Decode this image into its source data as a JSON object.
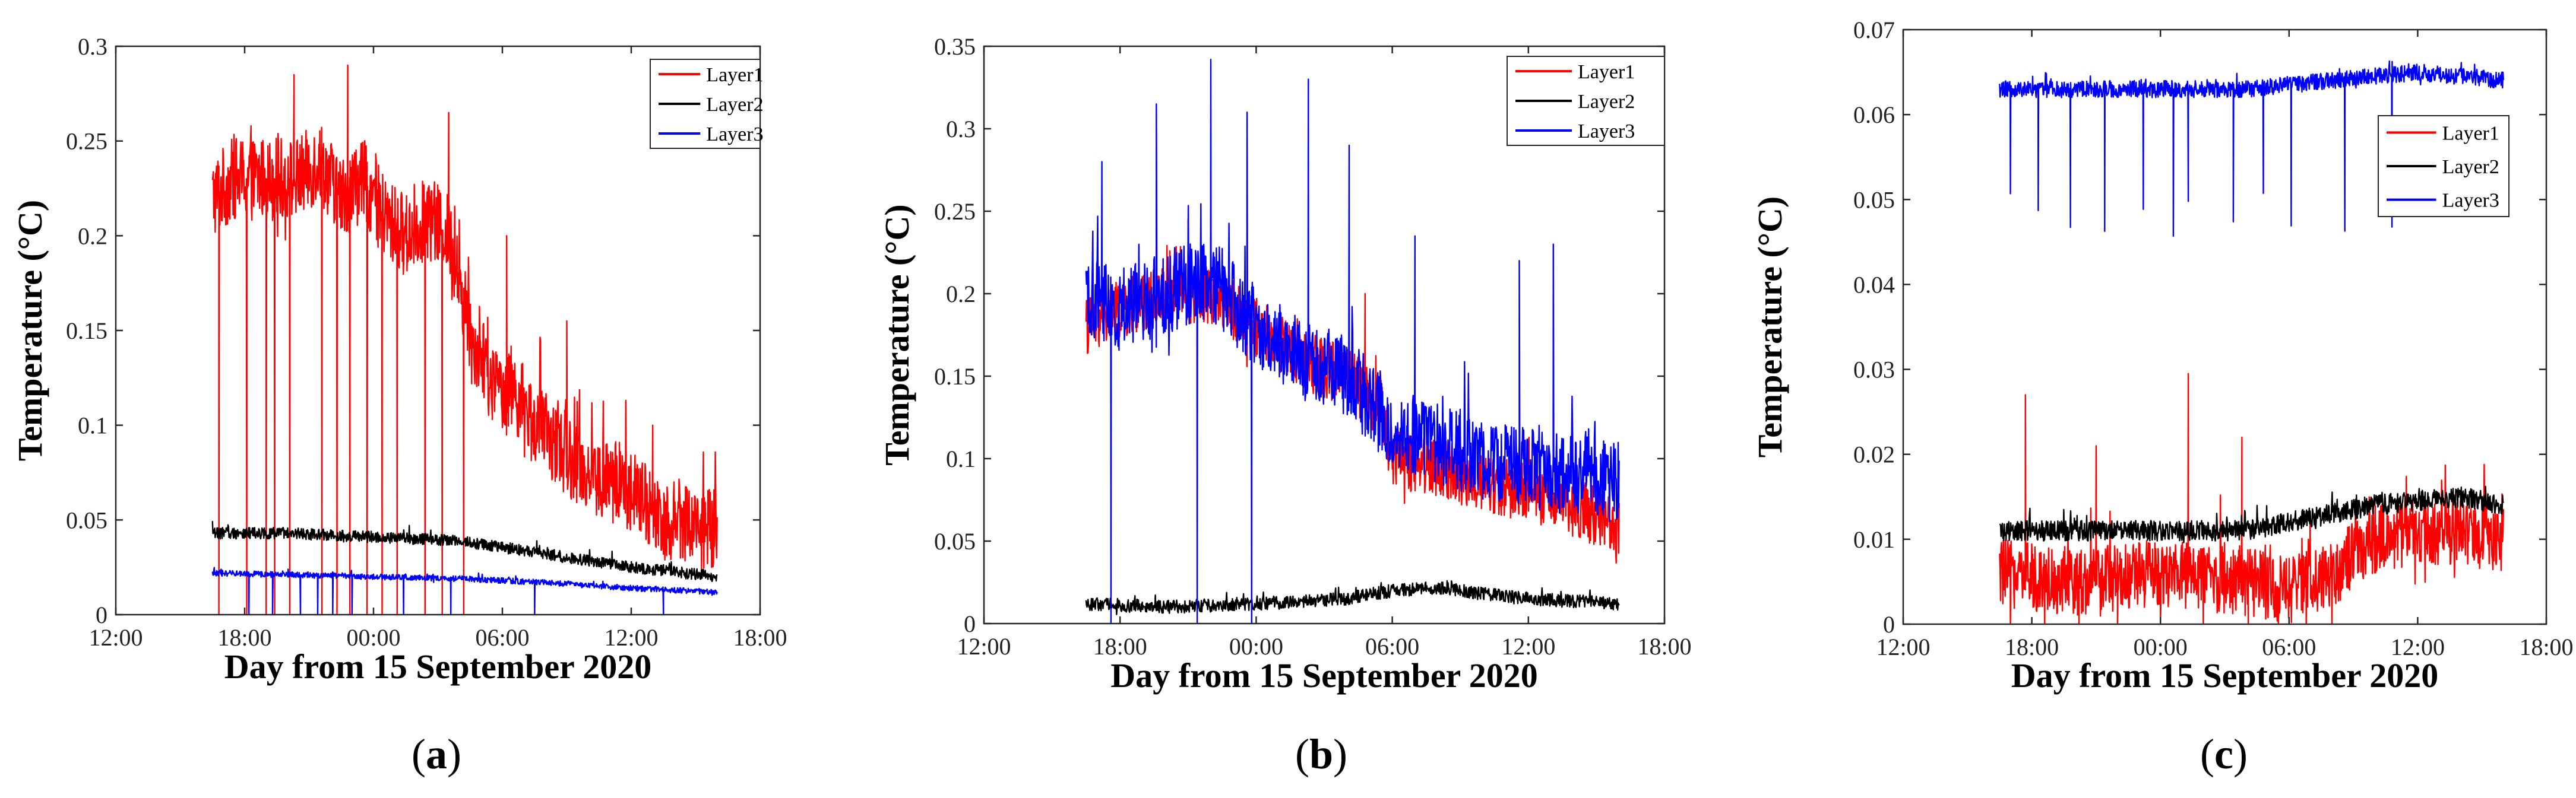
{
  "figure": {
    "xlabel": "Day from 15 September 2020",
    "ylabel": "Temperature (°C)"
  },
  "colors": {
    "Layer1": "#ff0000",
    "Layer2": "#000000",
    "Layer3": "#0000ff"
  },
  "chart_data": [
    {
      "panel": "a",
      "type": "line",
      "caption_open": "(",
      "caption_letter": "a",
      "caption_close": ")",
      "xlabel": "Day from 15 September 2020",
      "ylabel": "Temperature (°C)",
      "xlim": [
        12,
        42
      ],
      "xticks": [
        12,
        18,
        24,
        30,
        36,
        42
      ],
      "xtick_labels": [
        "12:00",
        "18:00",
        "00:00",
        "06:00",
        "12:00",
        "18:00"
      ],
      "ylim": [
        0,
        0.3
      ],
      "yticks": [
        0,
        0.05,
        0.1,
        0.15,
        0.2,
        0.25,
        0.3
      ],
      "ytick_labels": [
        "0",
        "0.05",
        "0.1",
        "0.15",
        "0.2",
        "0.25",
        "0.3"
      ],
      "legend": [
        "Layer1",
        "Layer2",
        "Layer3"
      ],
      "legend_position": "top-right",
      "series": [
        {
          "name": "Layer1",
          "x": [
            16.5,
            17.5,
            18.5,
            19.5,
            20.5,
            21.5,
            22.5,
            23.5,
            24.5,
            25.5,
            26.5,
            27.5,
            28.5,
            29.5,
            30.5,
            31.5,
            32.5,
            33.5,
            34.5,
            35.5,
            36.5,
            37.5,
            38.5,
            39.5,
            40.0
          ],
          "values": [
            0.22,
            0.23,
            0.23,
            0.23,
            0.23,
            0.24,
            0.22,
            0.23,
            0.21,
            0.2,
            0.21,
            0.2,
            0.15,
            0.12,
            0.12,
            0.1,
            0.09,
            0.08,
            0.07,
            0.07,
            0.06,
            0.05,
            0.05,
            0.045,
            0.045
          ],
          "noise": 0.022,
          "spikes": [
            {
              "x": 20.3,
              "y": 0.285
            },
            {
              "x": 22.8,
              "y": 0.29
            },
            {
              "x": 27.5,
              "y": 0.265
            },
            {
              "x": 30.2,
              "y": 0.2
            },
            {
              "x": 33.0,
              "y": 0.155
            },
            {
              "x": 37.0,
              "y": 0.1
            }
          ],
          "dips": [
            16.8,
            18.1,
            19.0,
            19.4,
            20.1,
            21.6,
            22.3,
            22.9,
            23.7,
            24.4,
            25.1,
            26.4,
            27.2,
            28.2
          ]
        },
        {
          "name": "Layer2",
          "x": [
            16.5,
            20,
            24,
            28,
            32,
            36,
            40
          ],
          "values": [
            0.043,
            0.043,
            0.041,
            0.039,
            0.032,
            0.025,
            0.02
          ],
          "noise": 0.003
        },
        {
          "name": "Layer3",
          "x": [
            16.5,
            20,
            24,
            28,
            32,
            36,
            40
          ],
          "values": [
            0.022,
            0.021,
            0.02,
            0.019,
            0.017,
            0.014,
            0.012
          ],
          "noise": 0.0015,
          "dips": [
            18.2,
            19.3,
            20.6,
            21.4,
            22.1,
            23.0,
            25.4,
            27.6,
            31.5,
            37.5
          ]
        }
      ]
    },
    {
      "panel": "b",
      "type": "line",
      "caption_open": "(",
      "caption_letter": "b",
      "caption_close": ")",
      "xlabel": "Day from 15 September 2020",
      "ylabel": "Temperature (°C)",
      "xlim": [
        12,
        42
      ],
      "xticks": [
        12,
        18,
        24,
        30,
        36,
        42
      ],
      "xtick_labels": [
        "12:00",
        "18:00",
        "00:00",
        "06:00",
        "12:00",
        "18:00"
      ],
      "ylim": [
        0,
        0.35
      ],
      "yticks": [
        0,
        0.05,
        0.1,
        0.15,
        0.2,
        0.25,
        0.3,
        0.35
      ],
      "ytick_labels": [
        "0",
        "0.05",
        "0.1",
        "0.15",
        "0.2",
        "0.25",
        "0.3",
        "0.35"
      ],
      "legend": [
        "Layer1",
        "Layer2",
        "Layer3"
      ],
      "legend_position": "top-right",
      "series": [
        {
          "name": "Layer1",
          "x": [
            16.5,
            18,
            20,
            22,
            24,
            26,
            28,
            29.5,
            30,
            32,
            34,
            36,
            38,
            40
          ],
          "values": [
            0.18,
            0.19,
            0.2,
            0.2,
            0.18,
            0.16,
            0.15,
            0.13,
            0.1,
            0.095,
            0.085,
            0.08,
            0.07,
            0.06
          ],
          "noise": 0.018,
          "spikes": [
            {
              "x": 21.0,
              "y": 0.245
            },
            {
              "x": 28.8,
              "y": 0.2
            }
          ]
        },
        {
          "name": "Layer2",
          "x": [
            16.5,
            20,
            24,
            28,
            30,
            32,
            34,
            36,
            40
          ],
          "values": [
            0.012,
            0.01,
            0.012,
            0.015,
            0.02,
            0.022,
            0.018,
            0.015,
            0.012
          ],
          "noise": 0.004
        },
        {
          "name": "Layer3",
          "x": [
            16.5,
            18,
            20,
            22,
            24,
            26,
            28,
            30,
            32,
            34,
            36,
            38,
            40
          ],
          "values": [
            0.2,
            0.19,
            0.2,
            0.21,
            0.18,
            0.16,
            0.15,
            0.12,
            0.11,
            0.1,
            0.095,
            0.09,
            0.085
          ],
          "noise": 0.025,
          "spikes": [
            {
              "x": 17.2,
              "y": 0.28
            },
            {
              "x": 19.6,
              "y": 0.315
            },
            {
              "x": 22.0,
              "y": 0.342
            },
            {
              "x": 23.6,
              "y": 0.31
            },
            {
              "x": 26.3,
              "y": 0.33
            },
            {
              "x": 28.1,
              "y": 0.29
            },
            {
              "x": 31.0,
              "y": 0.235
            },
            {
              "x": 35.6,
              "y": 0.22
            },
            {
              "x": 37.1,
              "y": 0.23
            }
          ],
          "dips": [
            17.6,
            21.4,
            23.8
          ]
        }
      ]
    },
    {
      "panel": "c",
      "type": "line",
      "caption_open": "(",
      "caption_letter": "c",
      "caption_close": ")",
      "xlabel": "Day from 15 September 2020",
      "ylabel": "Temperature (°C)",
      "xlim": [
        12,
        42
      ],
      "xticks": [
        12,
        18,
        24,
        30,
        36,
        42
      ],
      "xtick_labels": [
        "12:00",
        "18:00",
        "00:00",
        "06:00",
        "12:00",
        "18:00"
      ],
      "ylim": [
        0,
        0.07
      ],
      "yticks": [
        0,
        0.01,
        0.02,
        0.03,
        0.04,
        0.05,
        0.06,
        0.07
      ],
      "ytick_labels": [
        "0",
        "0.01",
        "0.02",
        "0.03",
        "0.04",
        "0.05",
        "0.06",
        "0.07"
      ],
      "legend": [
        "Layer1",
        "Layer2",
        "Layer3"
      ],
      "legend_position": "upper-right",
      "series": [
        {
          "name": "Layer1",
          "x": [
            16.5,
            20,
            24,
            28,
            30,
            32,
            34,
            36,
            38,
            40
          ],
          "values": [
            0.006,
            0.005,
            0.006,
            0.005,
            0.004,
            0.006,
            0.01,
            0.011,
            0.011,
            0.01
          ],
          "noise": 0.004,
          "spikes": [
            {
              "x": 17.7,
              "y": 0.027
            },
            {
              "x": 25.3,
              "y": 0.0295
            },
            {
              "x": 21.0,
              "y": 0.021
            },
            {
              "x": 27.8,
              "y": 0.022
            }
          ],
          "dips": [
            17.0,
            18.6,
            20.2,
            22.0,
            24.0,
            26.0,
            28.1,
            29.5,
            30.8,
            32.0
          ]
        },
        {
          "name": "Layer2",
          "x": [
            16.5,
            20,
            24,
            28,
            30,
            32,
            34,
            36,
            38,
            40
          ],
          "values": [
            0.011,
            0.011,
            0.011,
            0.011,
            0.012,
            0.013,
            0.014,
            0.0145,
            0.015,
            0.014
          ],
          "noise": 0.0012
        },
        {
          "name": "Layer3",
          "x": [
            16.5,
            20,
            24,
            28,
            32,
            36,
            40
          ],
          "values": [
            0.063,
            0.063,
            0.063,
            0.063,
            0.064,
            0.065,
            0.064
          ],
          "noise": 0.001,
          "dips": [
            17.0,
            18.3,
            19.8,
            21.4,
            23.2,
            24.6,
            25.3,
            27.4,
            28.8,
            30.1,
            32.6,
            34.8
          ]
        }
      ]
    }
  ]
}
